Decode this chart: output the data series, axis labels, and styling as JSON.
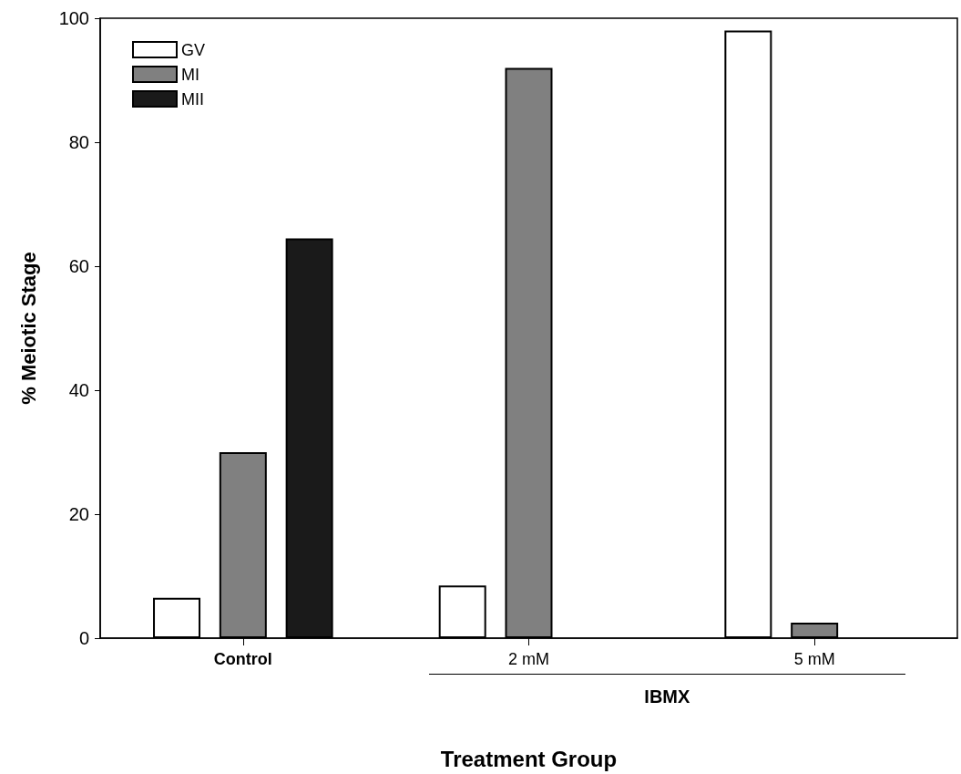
{
  "chart_data": {
    "type": "bar",
    "xlabel": "Treatment Group",
    "ylabel": "% Meiotic Stage",
    "categories": [
      "Control",
      "2 mM",
      "5 mM"
    ],
    "series": [
      {
        "name": "GV",
        "color": "#ffffff",
        "values": [
          6.5,
          8.5,
          98
        ]
      },
      {
        "name": "MI",
        "color": "#808080",
        "values": [
          30,
          92,
          2.5
        ]
      },
      {
        "name": "MII",
        "color": "#1a1a1a",
        "values": [
          64.5,
          null,
          null
        ]
      }
    ],
    "ylim": [
      0,
      100
    ],
    "yticks": [
      0,
      20,
      40,
      60,
      80,
      100
    ],
    "grid": false,
    "legend": "top left",
    "annotations": [
      "IBMX"
    ]
  }
}
